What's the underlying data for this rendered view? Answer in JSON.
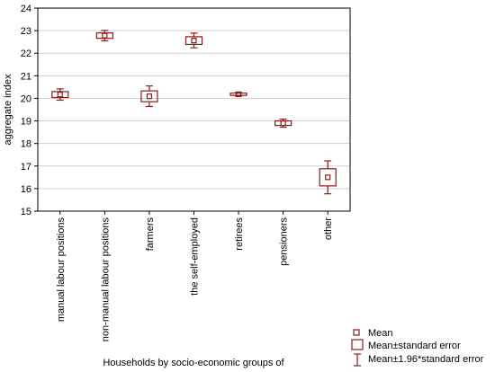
{
  "chart_data": {
    "type": "box",
    "xlabel": "Households by socio-economic groups of",
    "ylabel": "aggregate index",
    "ylim": [
      15,
      24
    ],
    "yticks": [
      15,
      16,
      17,
      18,
      19,
      20,
      21,
      22,
      23,
      24
    ],
    "grid": "horizontal",
    "legend_position": "bottom-right",
    "color": "#8b1a1a",
    "categories": [
      "manual labour positions",
      "non-manual labour positions",
      "farmers",
      "the self-employed",
      "retirees",
      "pensioners",
      "other"
    ],
    "mean": [
      20.17,
      22.78,
      20.09,
      22.56,
      20.18,
      18.9,
      16.5
    ],
    "se_low": [
      20.04,
      22.66,
      19.85,
      22.39,
      20.13,
      18.8,
      16.12
    ],
    "se_high": [
      20.3,
      22.9,
      20.33,
      22.73,
      20.23,
      19.0,
      16.88
    ],
    "ci_low": [
      19.92,
      22.55,
      19.64,
      22.24,
      20.1,
      18.72,
      15.77
    ],
    "ci_high": [
      20.42,
      23.01,
      20.55,
      22.89,
      20.26,
      19.08,
      17.23
    ],
    "legend": [
      "Mean",
      "Mean±standard error",
      "Mean±1.96*standard error"
    ]
  }
}
